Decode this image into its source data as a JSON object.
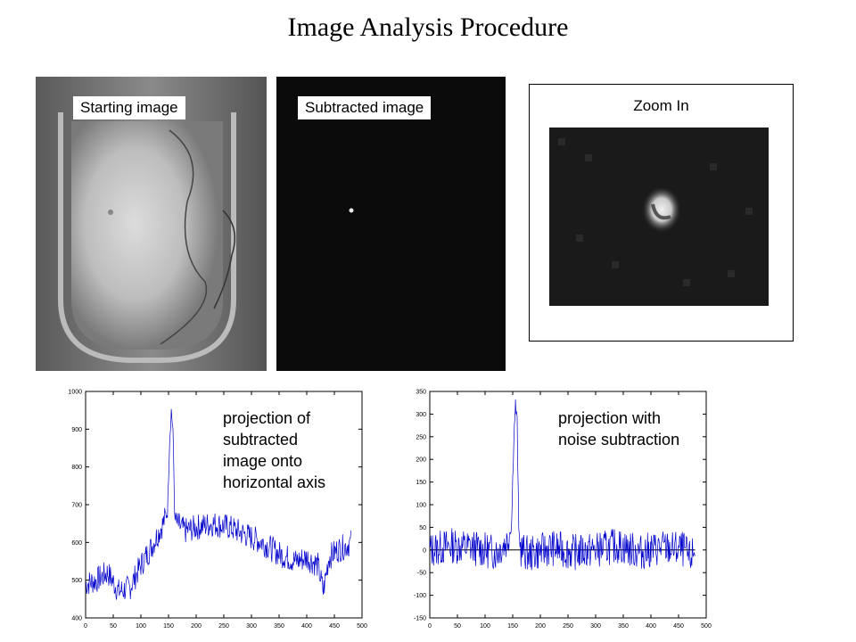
{
  "slide": {
    "title": "Image Analysis Procedure"
  },
  "images": {
    "starting_label": "Starting image",
    "subtracted_label": "Subtracted image",
    "zoom_label": "Zoom In"
  },
  "chart_data": [
    {
      "type": "line",
      "title": "",
      "annotation": "projection of\nsubtracted\nimage onto\nhorizontal axis",
      "xlim": [
        0,
        500
      ],
      "ylim": [
        400,
        1000
      ],
      "xticks": [
        0,
        50,
        100,
        150,
        200,
        250,
        300,
        350,
        400,
        450,
        500
      ],
      "yticks": [
        400,
        500,
        600,
        700,
        800,
        900,
        1000
      ],
      "baseline": null,
      "series": [
        {
          "x": [
            0,
            20,
            40,
            60,
            80,
            100,
            120,
            140,
            148,
            152,
            155,
            158,
            161,
            165,
            180,
            200,
            230,
            260,
            290,
            320,
            350,
            380,
            400,
            420,
            430,
            440,
            455,
            470,
            480
          ],
          "values": [
            490,
            500,
            520,
            470,
            480,
            540,
            590,
            650,
            680,
            870,
            950,
            900,
            680,
            650,
            630,
            640,
            650,
            640,
            620,
            600,
            570,
            550,
            560,
            540,
            470,
            560,
            580,
            590,
            600
          ],
          "color": "#0000cc"
        }
      ]
    },
    {
      "type": "line",
      "title": "",
      "annotation": "projection with\nnoise subtraction",
      "xlim": [
        0,
        500
      ],
      "ylim": [
        -150,
        350
      ],
      "xticks": [
        0,
        50,
        100,
        150,
        200,
        250,
        300,
        350,
        400,
        450,
        500
      ],
      "yticks": [
        -150,
        -100,
        -50,
        0,
        50,
        100,
        150,
        200,
        250,
        300,
        350
      ],
      "baseline": 0,
      "series": [
        {
          "x": [
            0,
            40,
            80,
            120,
            140,
            148,
            152,
            155,
            158,
            161,
            165,
            180,
            220,
            260,
            300,
            340,
            380,
            420,
            460,
            470,
            480
          ],
          "values": [
            0,
            10,
            5,
            -5,
            20,
            60,
            250,
            320,
            280,
            40,
            0,
            -10,
            5,
            -5,
            0,
            10,
            -5,
            5,
            0,
            -20,
            0
          ],
          "color": "#0000cc"
        }
      ]
    }
  ]
}
